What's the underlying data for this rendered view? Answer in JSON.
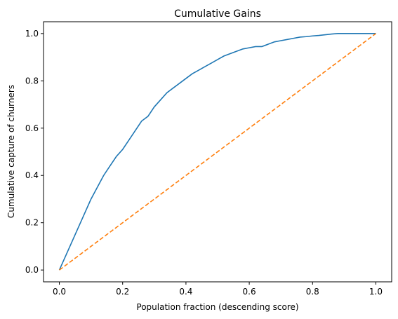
{
  "chart_data": {
    "type": "line",
    "title": "Cumulative Gains",
    "xlabel": "Population fraction (descending score)",
    "ylabel": "Cumulative capture of churners",
    "xlim": [
      -0.05,
      1.05
    ],
    "ylim": [
      -0.05,
      1.05
    ],
    "xticks": [
      0.0,
      0.2,
      0.4,
      0.6,
      0.8,
      1.0
    ],
    "yticks": [
      0.0,
      0.2,
      0.4,
      0.6,
      0.8,
      1.0
    ],
    "xtick_labels": [
      "0.0",
      "0.2",
      "0.4",
      "0.6",
      "0.8",
      "1.0"
    ],
    "ytick_labels": [
      "0.0",
      "0.2",
      "0.4",
      "0.6",
      "0.8",
      "1.0"
    ],
    "grid": false,
    "series": [
      {
        "color": "#1f77b4",
        "style": "solid",
        "x": [
          0.0,
          0.02,
          0.04,
          0.06,
          0.08,
          0.1,
          0.12,
          0.14,
          0.16,
          0.18,
          0.2,
          0.22,
          0.24,
          0.26,
          0.28,
          0.3,
          0.32,
          0.34,
          0.36,
          0.38,
          0.4,
          0.42,
          0.44,
          0.46,
          0.48,
          0.5,
          0.52,
          0.54,
          0.56,
          0.58,
          0.6,
          0.62,
          0.64,
          0.66,
          0.68,
          0.7,
          0.72,
          0.74,
          0.76,
          0.78,
          0.8,
          0.82,
          0.84,
          0.86,
          0.88,
          0.9,
          0.92,
          0.94,
          0.96,
          0.98,
          1.0
        ],
        "y": [
          0.0,
          0.06,
          0.12,
          0.18,
          0.24,
          0.3,
          0.35,
          0.4,
          0.44,
          0.48,
          0.51,
          0.55,
          0.59,
          0.63,
          0.65,
          0.69,
          0.72,
          0.75,
          0.77,
          0.79,
          0.81,
          0.83,
          0.845,
          0.86,
          0.875,
          0.89,
          0.905,
          0.915,
          0.925,
          0.935,
          0.94,
          0.945,
          0.945,
          0.955,
          0.965,
          0.97,
          0.975,
          0.98,
          0.985,
          0.987,
          0.99,
          0.992,
          0.995,
          0.998,
          1.0,
          1.0,
          1.0,
          1.0,
          1.0,
          1.0,
          1.0
        ]
      },
      {
        "color": "#ff7f0e",
        "style": "dashed",
        "x": [
          0.0,
          1.0
        ],
        "y": [
          0.0,
          1.0
        ]
      }
    ]
  }
}
